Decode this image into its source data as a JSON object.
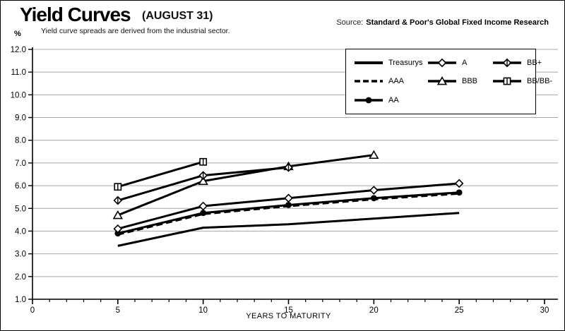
{
  "header": {
    "title": "Yield Curves",
    "title_suffix": "(AUGUST 31)",
    "subtitle": "Yield curve spreads are derived from the industrial sector.",
    "source_prefix": "Source:",
    "source": "Standard & Poor's Global Fixed Income Research",
    "y_unit": "%"
  },
  "chart_data": {
    "type": "line",
    "title": "Yield Curves (AUGUST 31)",
    "xlabel": "YEARS TO MATURITY",
    "ylabel": "%",
    "xlim": [
      0,
      30
    ],
    "ylim": [
      1.0,
      12.0
    ],
    "x_major_ticks": [
      0,
      5,
      10,
      15,
      20,
      25,
      30
    ],
    "x_minor_tick_step": 1,
    "y_ticks": [
      1,
      2,
      3,
      4,
      5,
      6,
      7,
      8,
      9,
      10,
      11,
      12
    ],
    "y_tick_labels": [
      "1.0",
      "2.0",
      "3.0",
      "4.0",
      "5.0",
      "6.0",
      "7.0",
      "8.0",
      "9.0",
      "10.0",
      "11.0",
      "12.0"
    ],
    "grid": "horizontal",
    "legend_position": "top-right",
    "series": [
      {
        "name": "Treasurys",
        "marker": "none",
        "dash": "solid",
        "x": [
          5,
          10,
          15,
          20,
          25
        ],
        "y": [
          3.35,
          4.15,
          4.3,
          4.55,
          4.8
        ]
      },
      {
        "name": "AAA",
        "marker": "none",
        "dash": "dashed",
        "x": [
          5,
          10,
          15,
          20,
          25
        ],
        "y": [
          3.85,
          4.75,
          5.1,
          5.4,
          5.65
        ]
      },
      {
        "name": "AA",
        "marker": "circle-filled",
        "dash": "solid",
        "x": [
          5,
          10,
          15,
          20,
          25
        ],
        "y": [
          3.9,
          4.8,
          5.15,
          5.45,
          5.7
        ]
      },
      {
        "name": "A",
        "marker": "diamond-open",
        "dash": "solid",
        "x": [
          5,
          10,
          15,
          20,
          25
        ],
        "y": [
          4.1,
          5.1,
          5.45,
          5.8,
          6.1
        ]
      },
      {
        "name": "BBB",
        "marker": "triangle-open",
        "dash": "solid",
        "x": [
          5,
          10,
          15,
          20
        ],
        "y": [
          4.7,
          6.2,
          6.85,
          7.35
        ]
      },
      {
        "name": "BB+",
        "marker": "diamond-cross-open",
        "dash": "solid",
        "x": [
          5,
          10,
          15
        ],
        "y": [
          5.35,
          6.45,
          6.8
        ]
      },
      {
        "name": "BB/BB-",
        "marker": "square-cross-open",
        "dash": "solid",
        "x": [
          5,
          10
        ],
        "y": [
          5.95,
          7.05
        ]
      }
    ],
    "legend": [
      {
        "label": "Treasurys",
        "marker": "none",
        "dash": "solid"
      },
      {
        "label": "AAA",
        "marker": "none",
        "dash": "dashed"
      },
      {
        "label": "AA",
        "marker": "circle-filled",
        "dash": "solid"
      },
      {
        "label": "A",
        "marker": "diamond-open",
        "dash": "solid"
      },
      {
        "label": "BBB",
        "marker": "triangle-open",
        "dash": "solid"
      },
      {
        "label": "BB+",
        "marker": "diamond-cross-open",
        "dash": "solid"
      },
      {
        "label": "BB/BB-",
        "marker": "square-cross-open",
        "dash": "solid"
      }
    ]
  },
  "colors": {
    "line": "#000000",
    "grid": "#a8a8a8",
    "background": "#ffffff"
  }
}
